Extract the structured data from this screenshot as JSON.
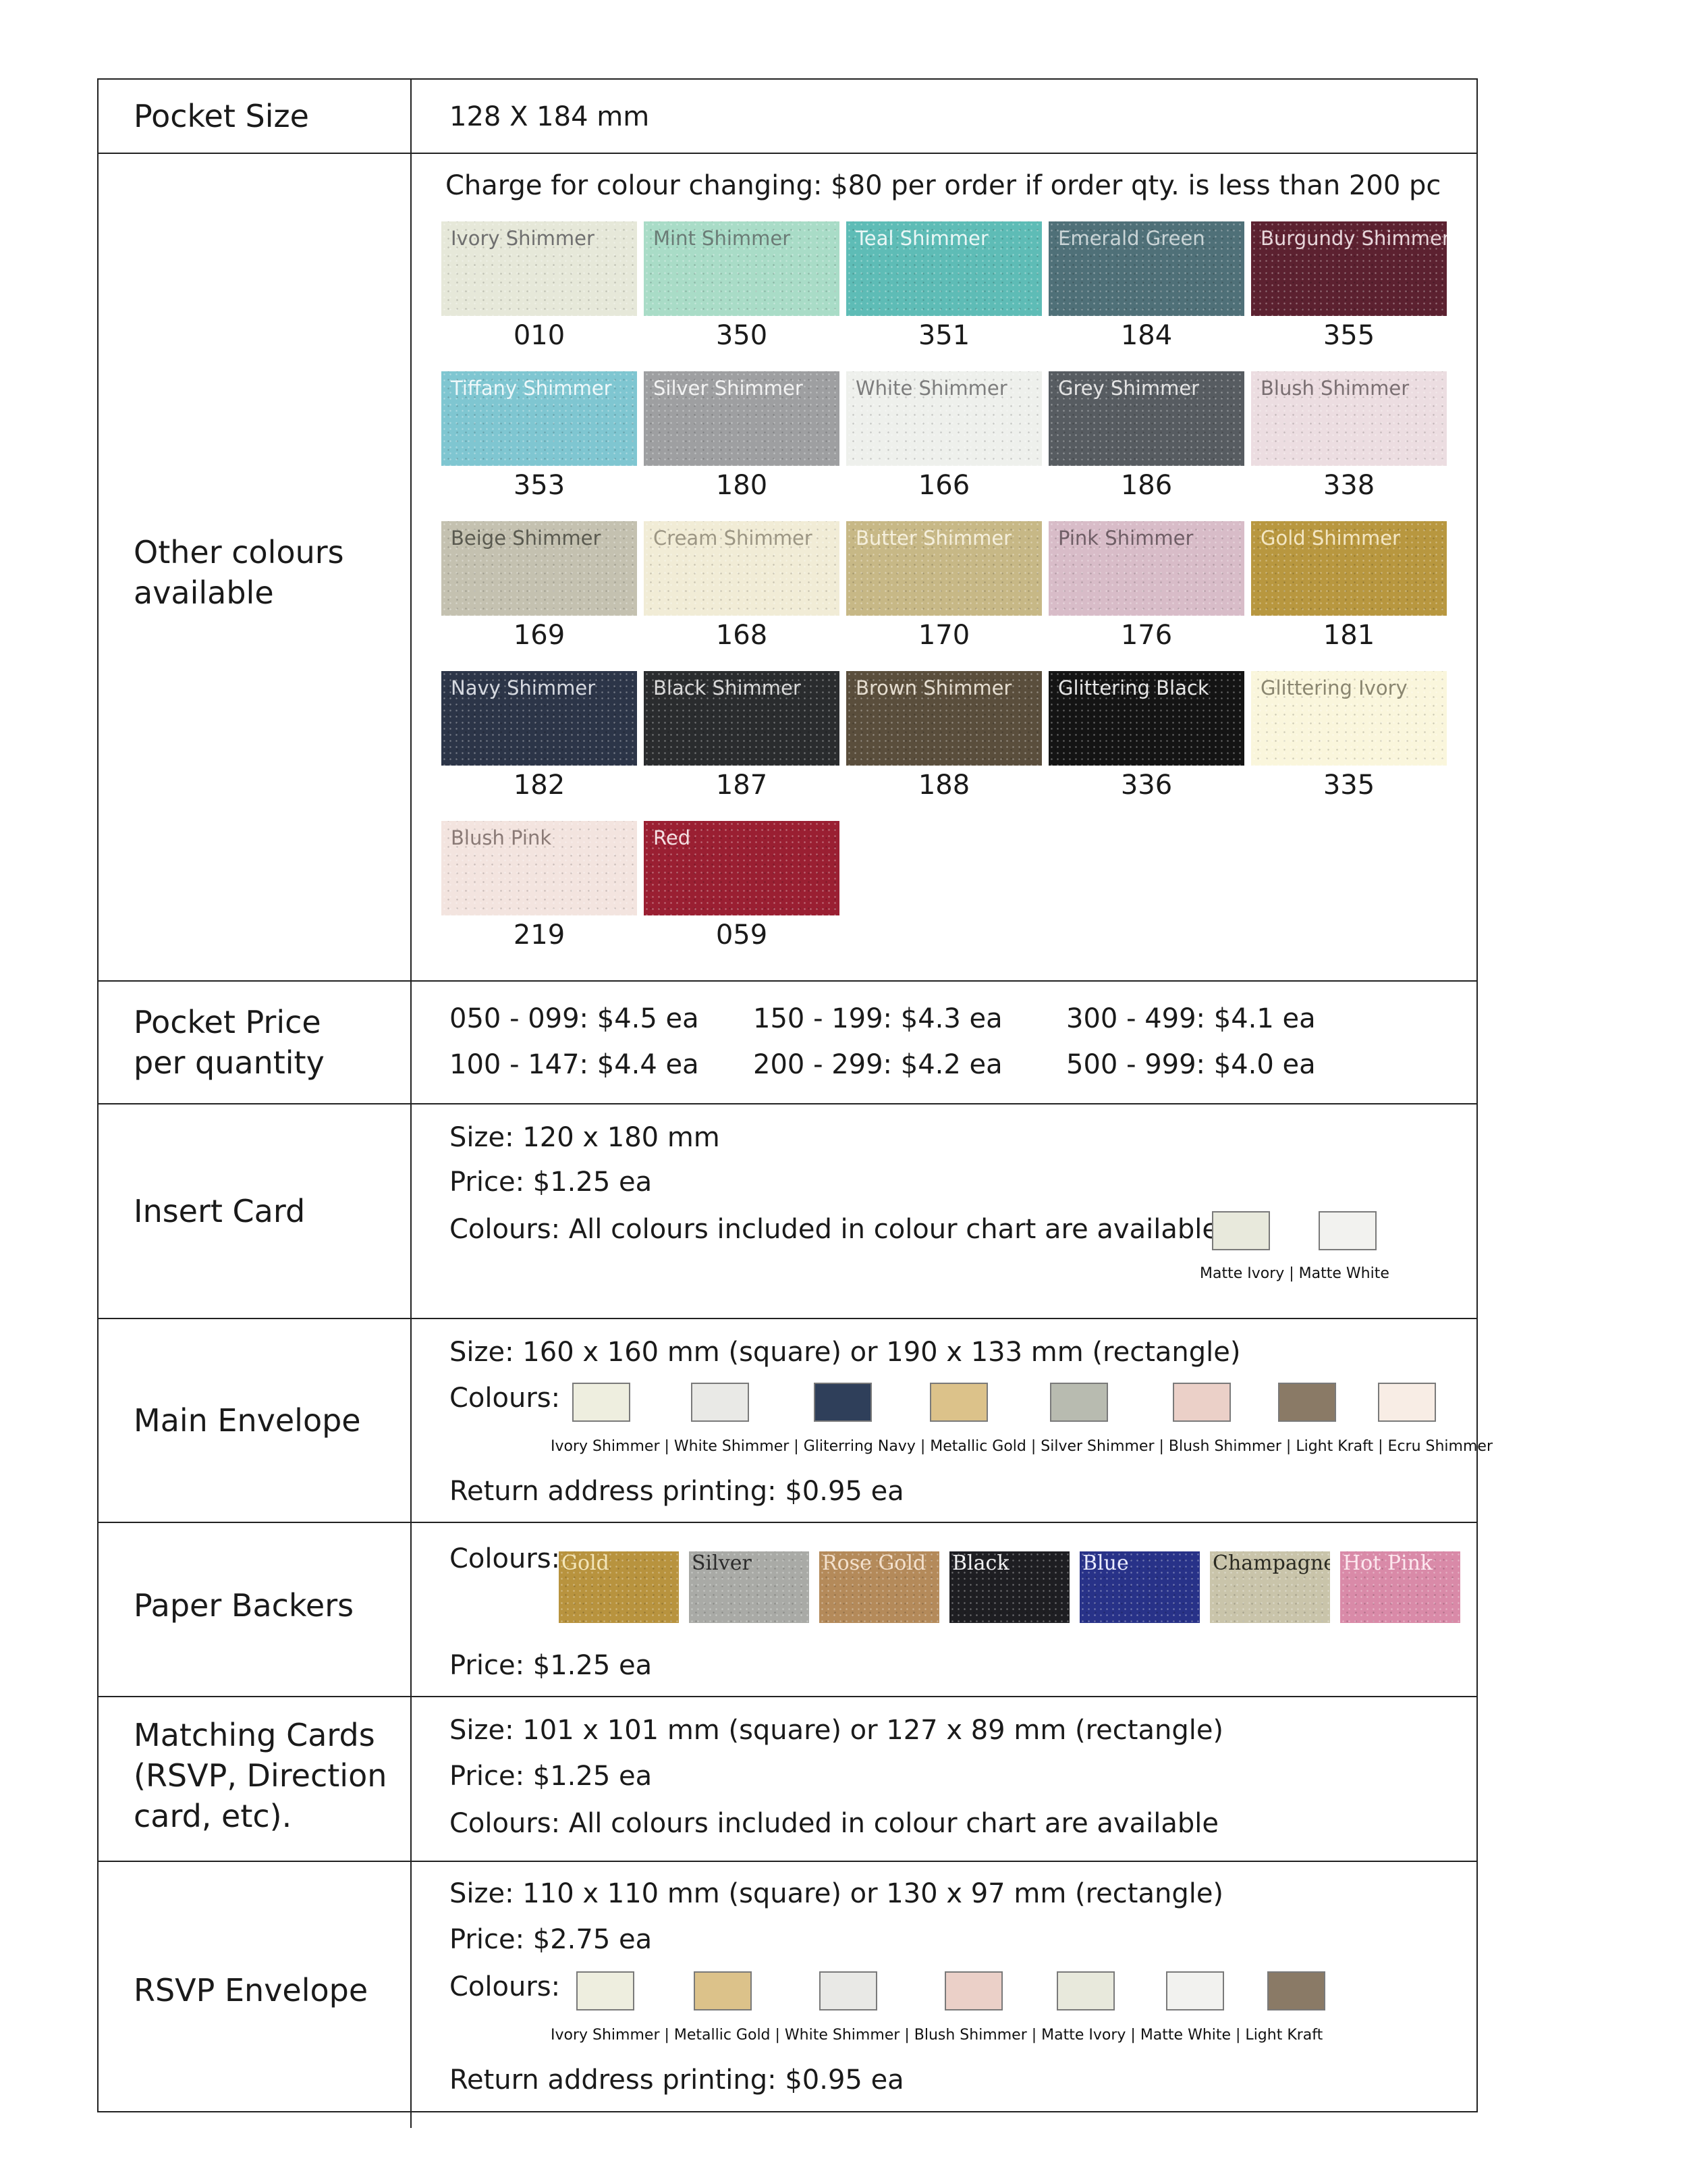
{
  "rows": {
    "pocket_size": {
      "label": "Pocket Size",
      "value": "128 X 184 mm"
    },
    "other_colours": {
      "label": "Other colours available",
      "note": "Charge for colour changing: $80 per order if order qty. is less than 200 pc",
      "swatches": [
        {
          "name": "Ivory Shimmer",
          "code": "010",
          "color": "#e6e8d9",
          "text": "#6f6f6f"
        },
        {
          "name": "Mint Shimmer",
          "code": "350",
          "color": "#a9dcc7",
          "text": "#6b7c76"
        },
        {
          "name": "Teal Shimmer",
          "code": "351",
          "color": "#5ebcb6",
          "text": "#eaf7f6"
        },
        {
          "name": "Emerald Green",
          "code": "184",
          "color": "#4f7078",
          "text": "#c9d4d6"
        },
        {
          "name": "Burgundy Shimmer",
          "code": "355",
          "color": "#5c2130",
          "text": "#e7d6da"
        },
        {
          "name": "Tiffany Shimmer",
          "code": "353",
          "color": "#7fc6d1",
          "text": "#eef8fa"
        },
        {
          "name": "Silver Shimmer",
          "code": "180",
          "color": "#9e9fa1",
          "text": "#f3f3f3"
        },
        {
          "name": "White Shimmer",
          "code": "166",
          "color": "#eef0ec",
          "text": "#7d7d7d"
        },
        {
          "name": "Grey Shimmer",
          "code": "186",
          "color": "#575c61",
          "text": "#e4e4e4"
        },
        {
          "name": "Blush Shimmer",
          "code": "338",
          "color": "#ecdde1",
          "text": "#7a6f72"
        },
        {
          "name": "Beige Shimmer",
          "code": "169",
          "color": "#c4c1b0",
          "text": "#5a5a50"
        },
        {
          "name": "Cream Shimmer",
          "code": "168",
          "color": "#f1ecd6",
          "text": "#9c9684"
        },
        {
          "name": "Butter Shimmer",
          "code": "170",
          "color": "#c7b886",
          "text": "#f5efdc"
        },
        {
          "name": "Pink Shimmer",
          "code": "176",
          "color": "#d8bcc8",
          "text": "#6f5e66"
        },
        {
          "name": "Gold Shimmer",
          "code": "181",
          "color": "#b8973f",
          "text": "#f3e6c3"
        },
        {
          "name": "Navy Shimmer",
          "code": "182",
          "color": "#2c3548",
          "text": "#d6d9e0"
        },
        {
          "name": "Black Shimmer",
          "code": "187",
          "color": "#2a2c2e",
          "text": "#d9d9d9"
        },
        {
          "name": "Brown Shimmer",
          "code": "188",
          "color": "#5a4e3c",
          "text": "#e5ddd0"
        },
        {
          "name": "Glittering Black",
          "code": "336",
          "color": "#141414",
          "text": "#e6e6e6"
        },
        {
          "name": "Glittering Ivory",
          "code": "335",
          "color": "#faf6dc",
          "text": "#8a8670"
        },
        {
          "name": "Blush Pink",
          "code": "219",
          "color": "#f3e4df",
          "text": "#8a7a76"
        },
        {
          "name": "Red",
          "code": "059",
          "color": "#9a1f32",
          "text": "#f4dfe2"
        }
      ]
    },
    "pocket_price": {
      "label_1": "Pocket Price",
      "label_2": "per quantity",
      "tiers": [
        "050 - 099: $4.5 ea",
        "150 - 199: $4.3 ea",
        "300 - 499: $4.1 ea",
        "100 - 147: $4.4 ea",
        "200 - 299: $4.2 ea",
        "500 - 999: $4.0 ea"
      ]
    },
    "insert_card": {
      "label": "Insert Card",
      "size": "Size: 120 x 180 mm",
      "price": "Price: $1.25 ea",
      "colours": "Colours: All colours included in colour chart are available +",
      "extra_colours": [
        {
          "name": "Matte Ivory",
          "color": "#e8e9dc"
        },
        {
          "name": "Matte White",
          "color": "#f2f2ef"
        }
      ],
      "extra_caption": "Matte Ivory | Matte White"
    },
    "main_envelope": {
      "label": "Main Envelope",
      "size": "Size: 160 x 160 mm (square) or 190 x 133 mm (rectangle)",
      "colours_label": "Colours:",
      "colours": [
        {
          "name": "Ivory Shimmer",
          "color": "#eeeedf"
        },
        {
          "name": "White Shimmer",
          "color": "#e9e9e6"
        },
        {
          "name": "Gliterring Navy",
          "color": "#2f3f5a"
        },
        {
          "name": "Metallic Gold",
          "color": "#dcc28a"
        },
        {
          "name": "Silver Shimmer",
          "color": "#b8bbb0"
        },
        {
          "name": "Blush Shimmer",
          "color": "#ebd0c8"
        },
        {
          "name": "Light Kraft",
          "color": "#8a7a66"
        },
        {
          "name": "Ecru Shimmer",
          "color": "#f8ede5"
        }
      ],
      "caption": "Ivory Shimmer | White Shimmer | Gliterring Navy | Metallic Gold |  Silver Shimmer | Blush Shimmer | Light Kraft | Ecru Shimmer",
      "return_printing": "Return address printing: $0.95 ea"
    },
    "paper_backers": {
      "label": "Paper Backers",
      "colours_label": "Colours:",
      "backers": [
        {
          "name": "Gold",
          "color": "#b8933e",
          "text": "#f3e5b8"
        },
        {
          "name": "Silver",
          "color": "#a9aaa6",
          "text": "#2b2b2b"
        },
        {
          "name": "Rose Gold",
          "color": "#b48a5a",
          "text": "#f3e0cc"
        },
        {
          "name": "Black",
          "color": "#1e1e22",
          "text": "#f2f2f2"
        },
        {
          "name": "Blue",
          "color": "#283288",
          "text": "#e9ebff"
        },
        {
          "name": "Champagne",
          "color": "#c9c4aa",
          "text": "#2a2a22"
        },
        {
          "name": "Hot Pink",
          "color": "#d98aa8",
          "text": "#fde8ef"
        }
      ],
      "price": "Price: $1.25 ea"
    },
    "matching_cards": {
      "label_1": "Matching Cards",
      "label_2": "(RSVP, Direction",
      "label_3": "card, etc).",
      "size": "Size:  101 x 101 mm (square) or 127 x 89 mm (rectangle)",
      "price": "Price: $1.25 ea",
      "colours": "Colours: All colours included in colour chart are available"
    },
    "rsvp_envelope": {
      "label": "RSVP Envelope",
      "size": "Size: 110 x 110 mm (square) or 130 x 97 mm (rectangle)",
      "price": "Price: $2.75 ea",
      "colours_label": "Colours:",
      "colours": [
        {
          "name": "Ivory Shimmer",
          "color": "#eeeedf"
        },
        {
          "name": "Metallic Gold",
          "color": "#dcc28a"
        },
        {
          "name": "White Shimmer",
          "color": "#e9e9e6"
        },
        {
          "name": "Blush Shimmer",
          "color": "#ebd0c8"
        },
        {
          "name": "Matte Ivory",
          "color": "#e8e9dc"
        },
        {
          "name": "Matte White",
          "color": "#f2f2ef"
        },
        {
          "name": "Light Kraft",
          "color": "#8a7a66"
        }
      ],
      "caption": "Ivory Shimmer | Metallic Gold | White Shimmer | Blush Shimmer | Matte Ivory | Matte White | Light Kraft",
      "return_printing": "Return address printing: $0.95 ea"
    }
  }
}
